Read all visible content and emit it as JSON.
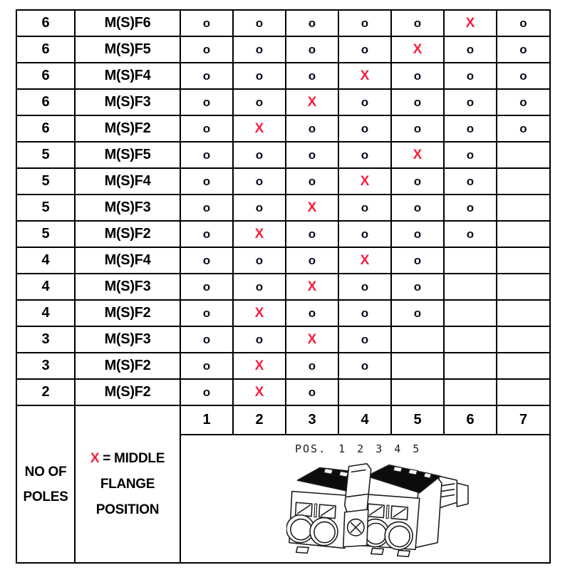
{
  "colors": {
    "flange_x_red": "#f81e3e",
    "ink": "#000000",
    "grid": "#000000",
    "paper": "#ffffff"
  },
  "marks": {
    "middle_flange": "X",
    "open_contact": "o",
    "empty": ""
  },
  "table": {
    "rows": [
      {
        "poles": "6",
        "variant": "M(S)F6",
        "positions": [
          "o",
          "o",
          "o",
          "o",
          "o",
          "X",
          "o"
        ]
      },
      {
        "poles": "6",
        "variant": "M(S)F5",
        "positions": [
          "o",
          "o",
          "o",
          "o",
          "X",
          "o",
          "o"
        ]
      },
      {
        "poles": "6",
        "variant": "M(S)F4",
        "positions": [
          "o",
          "o",
          "o",
          "X",
          "o",
          "o",
          "o"
        ]
      },
      {
        "poles": "6",
        "variant": "M(S)F3",
        "positions": [
          "o",
          "o",
          "X",
          "o",
          "o",
          "o",
          "o"
        ]
      },
      {
        "poles": "6",
        "variant": "M(S)F2",
        "positions": [
          "o",
          "X",
          "o",
          "o",
          "o",
          "o",
          "o"
        ]
      },
      {
        "poles": "5",
        "variant": "M(S)F5",
        "positions": [
          "o",
          "o",
          "o",
          "o",
          "X",
          "o",
          ""
        ]
      },
      {
        "poles": "5",
        "variant": "M(S)F4",
        "positions": [
          "o",
          "o",
          "o",
          "X",
          "o",
          "o",
          ""
        ]
      },
      {
        "poles": "5",
        "variant": "M(S)F3",
        "positions": [
          "o",
          "o",
          "X",
          "o",
          "o",
          "o",
          ""
        ]
      },
      {
        "poles": "5",
        "variant": "M(S)F2",
        "positions": [
          "o",
          "X",
          "o",
          "o",
          "o",
          "o",
          ""
        ]
      },
      {
        "poles": "4",
        "variant": "M(S)F4",
        "positions": [
          "o",
          "o",
          "o",
          "X",
          "o",
          "",
          ""
        ]
      },
      {
        "poles": "4",
        "variant": "M(S)F3",
        "positions": [
          "o",
          "o",
          "X",
          "o",
          "o",
          "",
          ""
        ]
      },
      {
        "poles": "4",
        "variant": "M(S)F2",
        "positions": [
          "o",
          "X",
          "o",
          "o",
          "o",
          "",
          ""
        ]
      },
      {
        "poles": "3",
        "variant": "M(S)F3",
        "positions": [
          "o",
          "o",
          "X",
          "o",
          "",
          "",
          ""
        ]
      },
      {
        "poles": "3",
        "variant": "M(S)F2",
        "positions": [
          "o",
          "X",
          "o",
          "o",
          "",
          "",
          ""
        ]
      },
      {
        "poles": "2",
        "variant": "M(S)F2",
        "positions": [
          "o",
          "X",
          "o",
          "",
          "",
          "",
          ""
        ]
      }
    ],
    "position_headers": [
      "1",
      "2",
      "3",
      "4",
      "5",
      "6",
      "7"
    ],
    "footer": {
      "poles_label": [
        "NO OF",
        "POLES"
      ],
      "legend": {
        "symbol": "X",
        "line1_rest": "= MIDDLE",
        "line2": "FLANGE",
        "line3": "POSITION"
      },
      "diagram": {
        "pos_label": "POS.",
        "pos_numbers": [
          "1",
          "2",
          "3",
          "4",
          "5"
        ]
      }
    }
  }
}
